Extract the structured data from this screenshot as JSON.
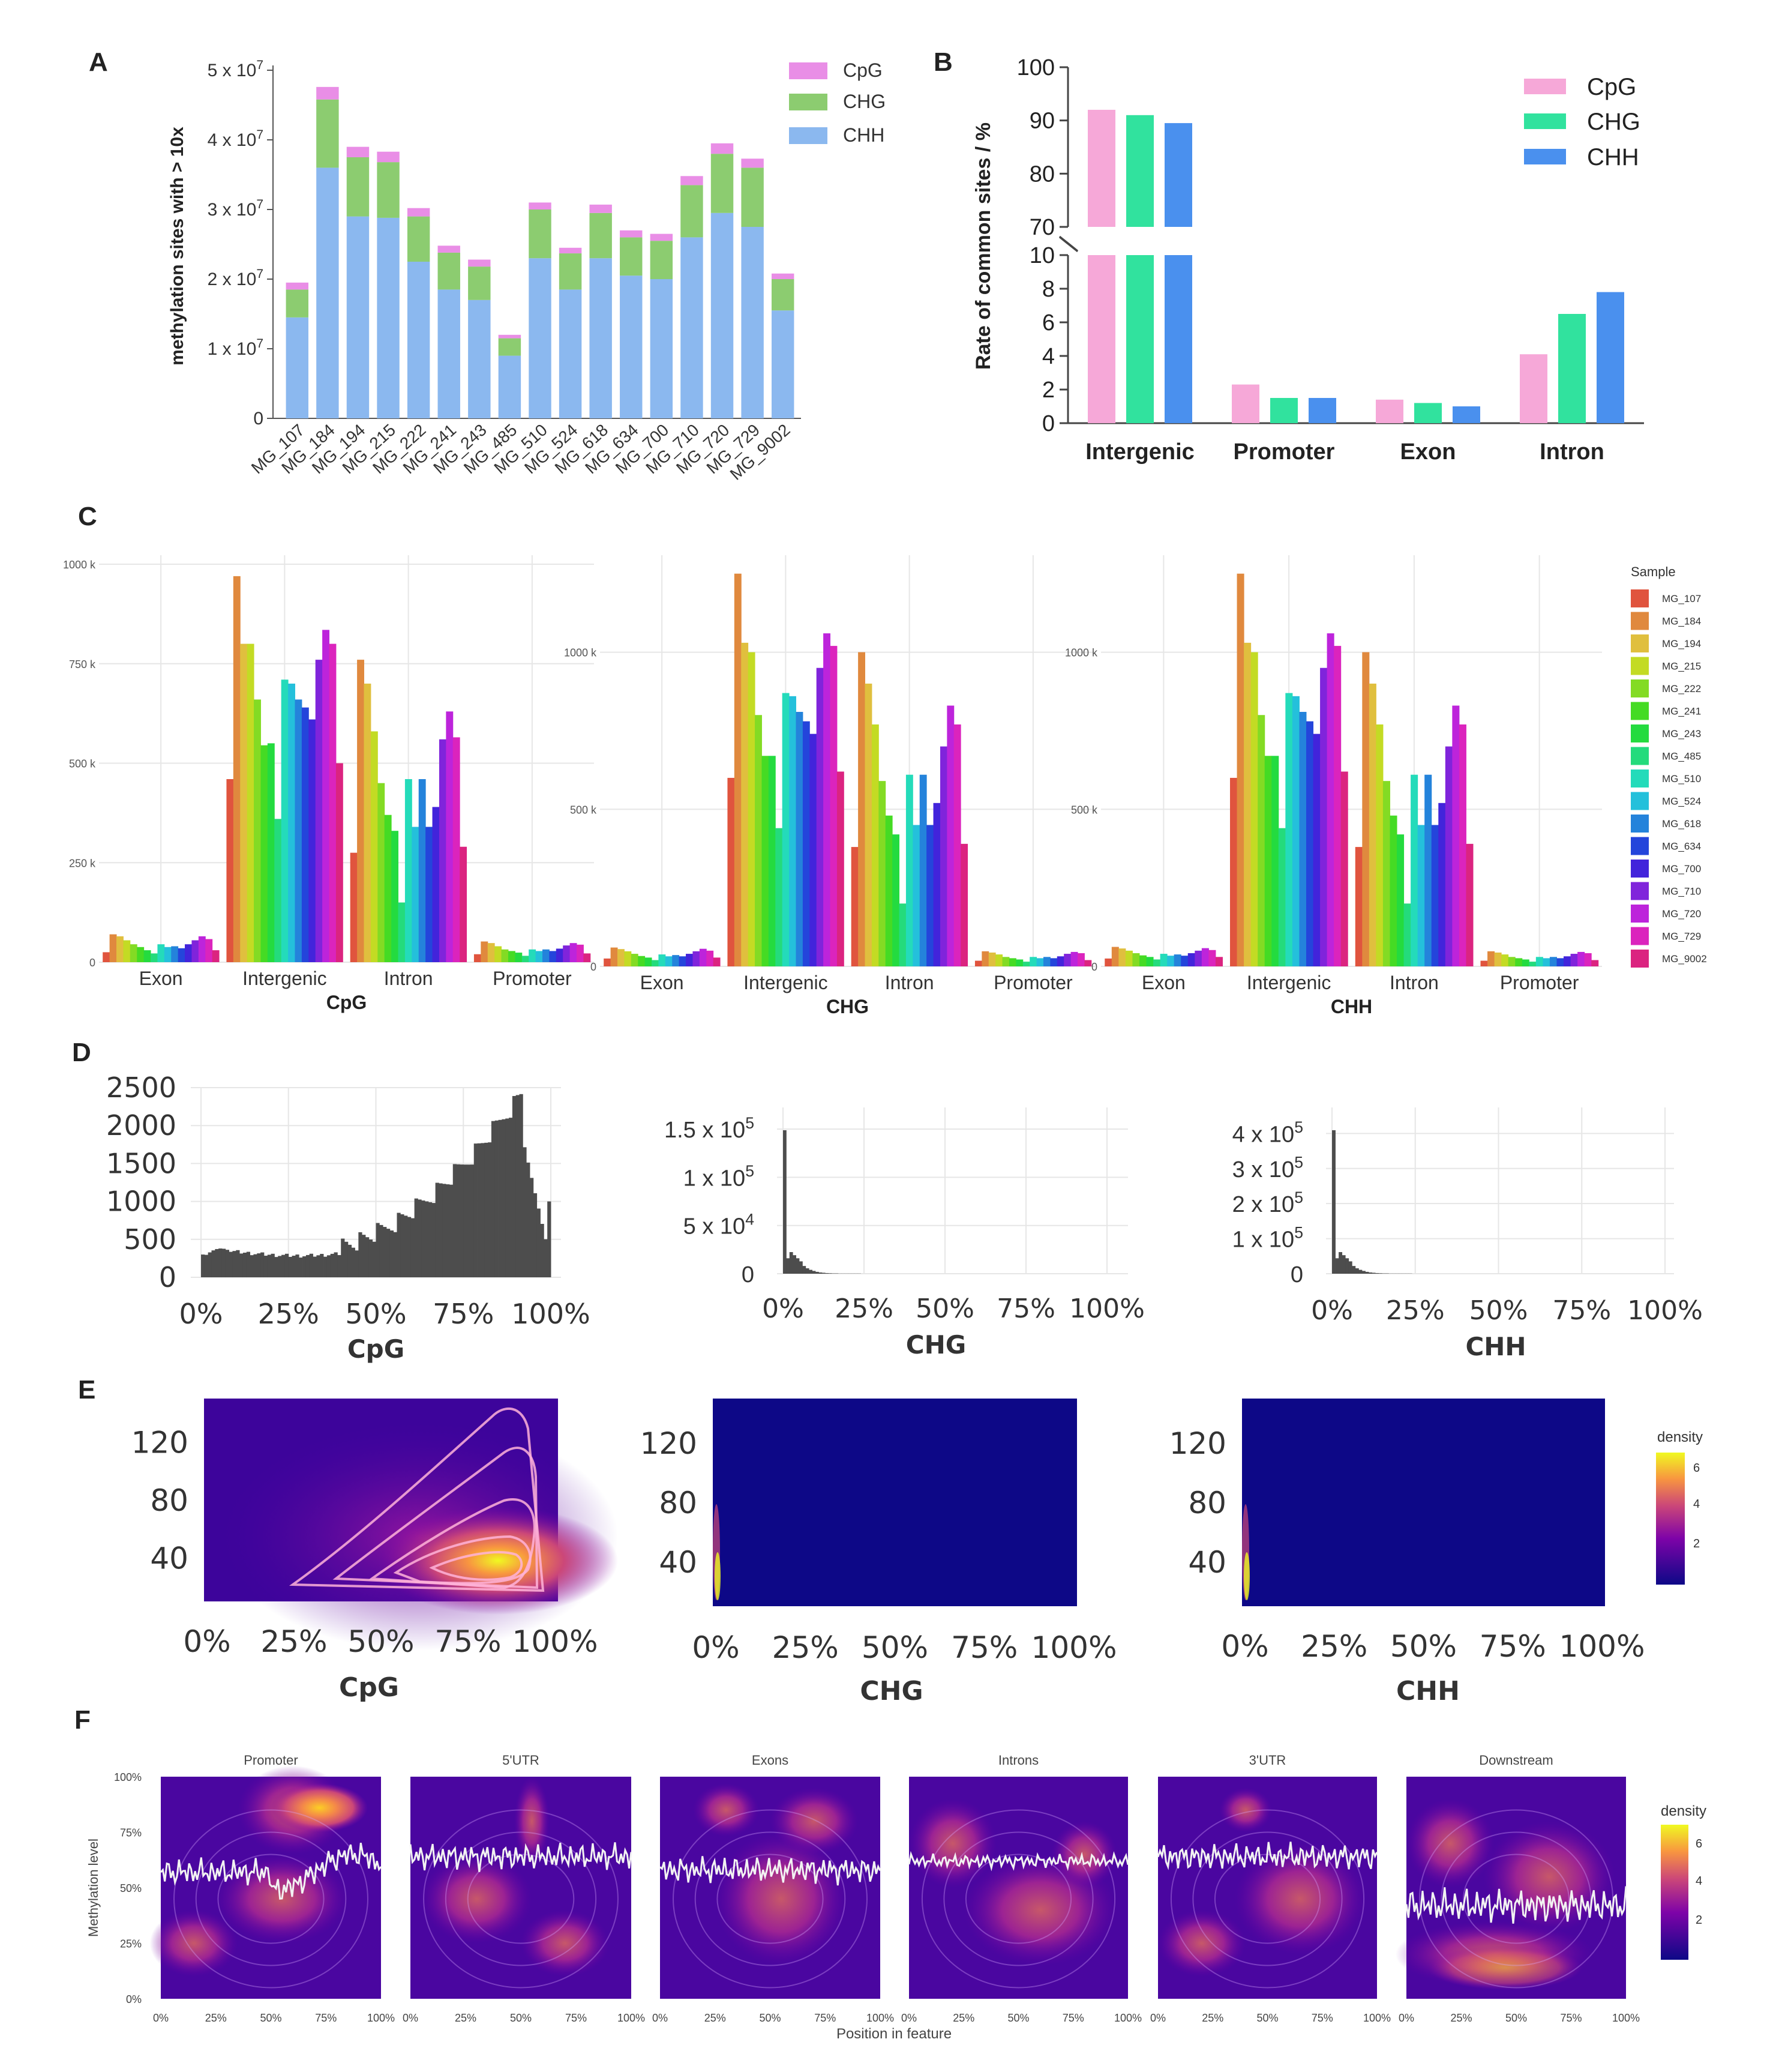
{
  "colors": {
    "CpG": "#e98ee6",
    "CHG": "#8ccc70",
    "CHH": "#8bb8ef",
    "B_CpG": "#f6a8d8",
    "B_CHG": "#31e29e",
    "B_CHH": "#4a90ee",
    "bar_dark": "#4d4d4d",
    "grid": "#e6e6e6"
  },
  "panels": {
    "A": "A",
    "B": "B",
    "C": "C",
    "D": "D",
    "E": "E",
    "F": "F"
  },
  "chart_data": [
    {
      "id": "A",
      "type": "bar",
      "stacked": true,
      "ylabel": "methylation sites with > 10x",
      "ylim": [
        0,
        50000000
      ],
      "yticks": [
        "0",
        "1 x 10",
        "2 x 10",
        "3 x 10",
        "4 x 10",
        "5 x 10"
      ],
      "ytick_exp": "7",
      "categories": [
        "MG_107",
        "MG_184",
        "MG_194",
        "MG_215",
        "MG_222",
        "MG_241",
        "MG_243",
        "MG_485",
        "MG_510",
        "MG_524",
        "MG_618",
        "MG_634",
        "MG_700",
        "MG_710",
        "MG_720",
        "MG_729",
        "MG_9002"
      ],
      "series": [
        {
          "name": "CHH",
          "values": [
            14.5,
            36,
            29,
            28.8,
            22.5,
            18.5,
            17,
            9,
            23,
            18.5,
            23,
            20.5,
            20,
            26,
            29.5,
            27.5,
            15.5
          ]
        },
        {
          "name": "CHG",
          "values": [
            4,
            9.8,
            8.5,
            8,
            6.5,
            5.3,
            4.8,
            2.5,
            7,
            5.2,
            6.5,
            5.5,
            5.5,
            7.5,
            8.5,
            8.5,
            4.5
          ]
        },
        {
          "name": "CpG",
          "values": [
            1,
            1.8,
            1.5,
            1.5,
            1.2,
            1,
            1,
            0.5,
            1,
            0.8,
            1.2,
            1,
            1,
            1.3,
            1.5,
            1.3,
            0.8
          ]
        }
      ],
      "units_note": "values in units of 10^6",
      "legend": [
        "CpG",
        "CHG",
        "CHH"
      ]
    },
    {
      "id": "B",
      "type": "bar",
      "ylabel": "Rate of common sites / %",
      "categories": [
        "Intergenic",
        "Promoter",
        "Exon",
        "Intron"
      ],
      "series": [
        {
          "name": "CpG",
          "values": [
            92,
            2.3,
            1.4,
            4.1
          ]
        },
        {
          "name": "CHG",
          "values": [
            91,
            1.5,
            1.2,
            6.5
          ]
        },
        {
          "name": "CHH",
          "values": [
            89.5,
            1.5,
            1.0,
            7.8
          ]
        }
      ],
      "yticks_low": [
        "0",
        "2",
        "4",
        "6",
        "8",
        "10"
      ],
      "yticks_high": [
        "70",
        "80",
        "90",
        "100"
      ],
      "legend": [
        "CpG",
        "CHG",
        "CHH"
      ]
    },
    {
      "id": "C",
      "type": "bar",
      "legend_title": "Sample",
      "samples": [
        "MG_107",
        "MG_184",
        "MG_194",
        "MG_215",
        "MG_222",
        "MG_241",
        "MG_243",
        "MG_485",
        "MG_510",
        "MG_524",
        "MG_618",
        "MG_634",
        "MG_700",
        "MG_710",
        "MG_720",
        "MG_729",
        "MG_9002"
      ],
      "features": [
        "Exon",
        "Intergenic",
        "Intron",
        "Promoter"
      ],
      "subplots": [
        {
          "title": "CpG",
          "yticks": [
            "0",
            "250 k",
            "500 k",
            "750 k",
            "1000 k"
          ],
          "ytick_vals": [
            0,
            250,
            500,
            750,
            1000
          ],
          "ymax": 1000,
          "values": {
            "Exon": [
              25,
              70,
              65,
              55,
              45,
              38,
              30,
              22,
              45,
              38,
              40,
              35,
              45,
              55,
              65,
              58,
              30
            ],
            "Intergenic": [
              460,
              970,
              800,
              800,
              660,
              545,
              550,
              360,
              710,
              700,
              660,
              640,
              610,
              760,
              835,
              800,
              500
            ],
            "Intron": [
              275,
              760,
              700,
              580,
              450,
              370,
              330,
              150,
              460,
              340,
              460,
              340,
              390,
              560,
              630,
              565,
              290
            ],
            "Promoter": [
              20,
              52,
              48,
              40,
              32,
              28,
              24,
              16,
              32,
              28,
              32,
              28,
              34,
              42,
              48,
              44,
              22
            ]
          }
        },
        {
          "title": "CHG",
          "yticks": [
            "0",
            "500 k",
            "1000 k"
          ],
          "ytick_vals": [
            0,
            500,
            1000
          ],
          "ymax": 1280,
          "values": {
            "Exon": [
              25,
              60,
              55,
              48,
              40,
              33,
              28,
              20,
              38,
              32,
              36,
              32,
              40,
              48,
              56,
              50,
              28
            ],
            "Intergenic": [
              600,
              1250,
              1030,
              1000,
              800,
              670,
              670,
              440,
              870,
              860,
              810,
              780,
              740,
              950,
              1060,
              1020,
              620
            ],
            "Intron": [
              380,
              1000,
              900,
              770,
              590,
              480,
              420,
              200,
              610,
              450,
              610,
              450,
              520,
              700,
              830,
              770,
              390
            ],
            "Promoter": [
              18,
              48,
              44,
              38,
              30,
              26,
              22,
              15,
              30,
              26,
              30,
              26,
              32,
              40,
              46,
              42,
              20
            ]
          }
        },
        {
          "title": "CHH",
          "yticks": [
            "0",
            "500 k",
            "1000 k"
          ],
          "ytick_vals": [
            0,
            500,
            1000
          ],
          "ymax": 1280,
          "values": {
            "Exon": [
              25,
              62,
              57,
              50,
              42,
              35,
              30,
              22,
              40,
              34,
              38,
              34,
              42,
              50,
              58,
              52,
              30
            ],
            "Intergenic": [
              600,
              1250,
              1030,
              1000,
              800,
              670,
              670,
              440,
              870,
              860,
              810,
              780,
              740,
              950,
              1060,
              1020,
              620
            ],
            "Intron": [
              380,
              1000,
              900,
              770,
              590,
              480,
              420,
              200,
              610,
              450,
              610,
              450,
              520,
              700,
              830,
              770,
              390
            ],
            "Promoter": [
              18,
              48,
              44,
              38,
              30,
              26,
              22,
              15,
              30,
              26,
              30,
              26,
              32,
              40,
              46,
              42,
              20
            ]
          }
        }
      ]
    },
    {
      "id": "D",
      "type": "bar",
      "subtype": "histogram",
      "xticks": [
        "0%",
        "25%",
        "50%",
        "75%",
        "100%"
      ],
      "subplots": [
        {
          "title": "CpG",
          "yticks": [
            "0",
            "500",
            "1000",
            "1500",
            "2000",
            "2500"
          ],
          "ylim": [
            0,
            2500
          ]
        },
        {
          "title": "CHG",
          "yticks": [
            "0",
            "5 x 10",
            "1 x 10",
            "1.5 x 10"
          ],
          "ytick_exps": [
            "",
            "4",
            "5",
            "5"
          ],
          "ylim": [
            0,
            160000
          ]
        },
        {
          "title": "CHH",
          "yticks": [
            "0",
            "1 x 10",
            "2 x 10",
            "3 x 10",
            "4 x 10"
          ],
          "ytick_exps": [
            "",
            "5",
            "5",
            "5",
            "5"
          ],
          "ylim": [
            0,
            440000
          ]
        }
      ]
    },
    {
      "id": "E",
      "type": "heatmap",
      "xticks": [
        "0%",
        "25%",
        "50%",
        "75%",
        "100%"
      ],
      "yticks": [
        "40",
        "80",
        "120"
      ],
      "legend_title": "density",
      "legend_ticks": [
        "2",
        "4",
        "6"
      ],
      "subplots": [
        {
          "title": "CpG"
        },
        {
          "title": "CHG"
        },
        {
          "title": "CHH"
        }
      ]
    },
    {
      "id": "F",
      "type": "heatmap",
      "ylabel": "Methylation level",
      "xlabel": "Position in feature",
      "xticks": [
        "0%",
        "25%",
        "50%",
        "75%",
        "100%"
      ],
      "yticks": [
        "0%",
        "25%",
        "50%",
        "75%",
        "100%"
      ],
      "legend_title": "density",
      "legend_ticks": [
        "2",
        "4",
        "6"
      ],
      "subplots": [
        {
          "title": "Promoter",
          "mean": 0.57
        },
        {
          "title": "5'UTR",
          "mean": 0.64
        },
        {
          "title": "Exons",
          "mean": 0.58
        },
        {
          "title": "Introns",
          "mean": 0.62
        },
        {
          "title": "3'UTR",
          "mean": 0.64
        },
        {
          "title": "Downstream",
          "mean": 0.42
        }
      ]
    }
  ]
}
